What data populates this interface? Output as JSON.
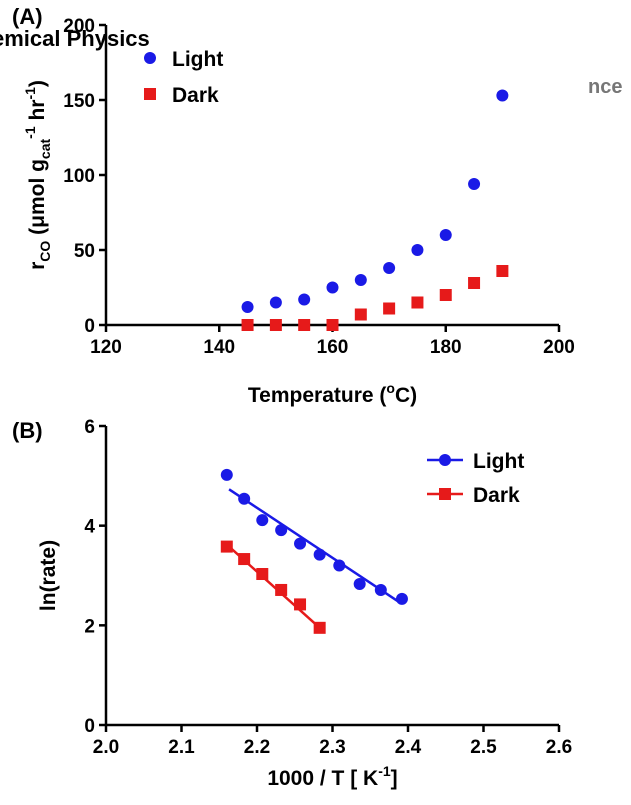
{
  "overlay": {
    "left_fragment": "emical Physics",
    "right_fragment": "nce"
  },
  "chart_data": [
    {
      "panel_label": "(A)",
      "type": "scatter",
      "xlabel": "Temperature (°C)",
      "ylabel": "rCO (μmol gcat-1 hr-1)",
      "xlim": [
        120,
        200
      ],
      "ylim": [
        0,
        200
      ],
      "xticks": [
        120,
        140,
        160,
        180,
        200
      ],
      "yticks": [
        0,
        50,
        100,
        150,
        200
      ],
      "grid": false,
      "legend_position": "top-left",
      "series": [
        {
          "name": "Light",
          "color": "#1a1ae6",
          "marker": "circle",
          "x": [
            145,
            150,
            155,
            160,
            165,
            170,
            175,
            180,
            185,
            190
          ],
          "y": [
            12,
            15,
            17,
            25,
            30,
            38,
            50,
            60,
            94,
            153
          ]
        },
        {
          "name": "Dark",
          "color": "#e61a1a",
          "marker": "square",
          "x": [
            145,
            150,
            155,
            160,
            165,
            170,
            175,
            180,
            185,
            190
          ],
          "y": [
            0,
            0,
            0,
            0,
            7,
            11,
            15,
            20,
            28,
            36
          ]
        }
      ]
    },
    {
      "panel_label": "(B)",
      "type": "scatter",
      "xlabel": "1000 / T [ K-1]",
      "ylabel": "ln(rate)",
      "xlim": [
        2.0,
        2.6
      ],
      "ylim": [
        0,
        6
      ],
      "xticks": [
        2.0,
        2.1,
        2.2,
        2.3,
        2.4,
        2.5,
        2.6
      ],
      "yticks": [
        0,
        2,
        4,
        6
      ],
      "grid": false,
      "legend_position": "top-right",
      "series": [
        {
          "name": "Light",
          "color": "#1a1ae6",
          "marker": "circle",
          "x": [
            2.16,
            2.183,
            2.207,
            2.232,
            2.257,
            2.283,
            2.309,
            2.336,
            2.364,
            2.392
          ],
          "y": [
            5.02,
            4.54,
            4.11,
            3.91,
            3.64,
            3.42,
            3.2,
            2.83,
            2.71,
            2.53
          ],
          "fit_line": {
            "x": [
              2.163,
              2.39
            ],
            "y": [
              4.73,
              2.45
            ]
          }
        },
        {
          "name": "Dark",
          "color": "#e61a1a",
          "marker": "square",
          "x": [
            2.16,
            2.183,
            2.207,
            2.232,
            2.257,
            2.283
          ],
          "y": [
            3.58,
            3.33,
            3.03,
            2.71,
            2.42,
            1.95
          ],
          "fit_line": {
            "x": [
              2.16,
              2.283
            ],
            "y": [
              3.62,
              1.95
            ]
          }
        }
      ]
    }
  ]
}
